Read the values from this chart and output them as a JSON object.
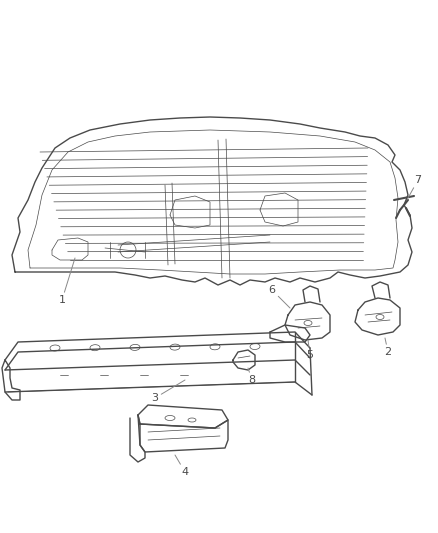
{
  "bg_color": "#ffffff",
  "line_color": "#4a4a4a",
  "fig_width": 4.39,
  "fig_height": 5.33,
  "dpi": 100
}
